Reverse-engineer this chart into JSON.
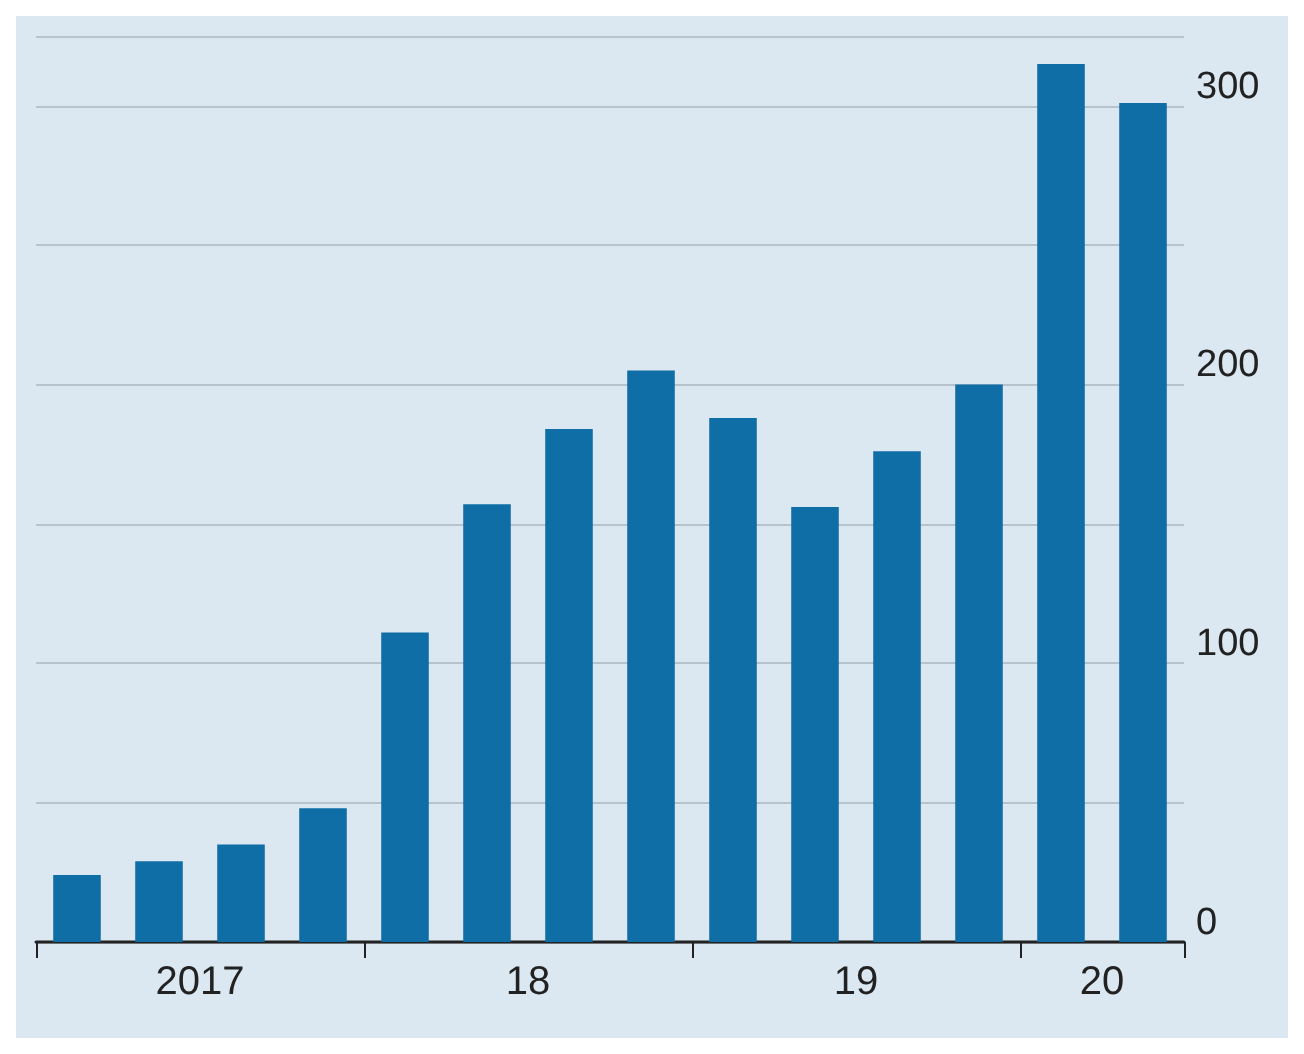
{
  "chart_data": {
    "type": "bar",
    "categories": [
      null,
      "2017",
      null,
      null,
      null,
      "18",
      null,
      null,
      null,
      "19",
      null,
      null,
      "20",
      null
    ],
    "values": [
      24,
      29,
      35,
      48,
      111,
      157,
      184,
      205,
      188,
      156,
      176,
      200,
      315,
      301
    ],
    "color": "#0f6ea6",
    "ylim": [
      0,
      325
    ],
    "yticks": [
      0,
      100,
      200,
      300
    ],
    "grid": "y"
  }
}
